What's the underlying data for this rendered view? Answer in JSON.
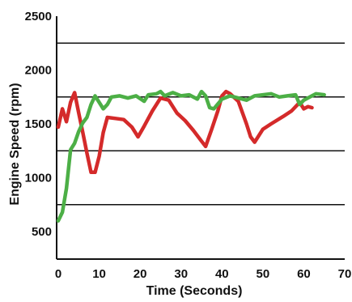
{
  "chart_data": {
    "type": "line",
    "title": "",
    "xlabel": "Time (Seconds)",
    "ylabel": "Engine Speed (rpm)",
    "xlim": [
      0,
      70
    ],
    "ylim": [
      300,
      2500
    ],
    "x_ticks": [
      0,
      10,
      20,
      30,
      40,
      50,
      60,
      70
    ],
    "y_ticks": [
      500,
      1000,
      1500,
      2000,
      2500
    ],
    "grid_y": [
      750,
      1250,
      1750,
      2250
    ],
    "grid": true,
    "legend": "none",
    "series": [
      {
        "color": "#d42a2a",
        "points": [
          [
            0,
            1470
          ],
          [
            1,
            1640
          ],
          [
            2,
            1520
          ],
          [
            3,
            1700
          ],
          [
            4,
            1790
          ],
          [
            5,
            1600
          ],
          [
            6,
            1420
          ],
          [
            7,
            1230
          ],
          [
            8,
            1050
          ],
          [
            9,
            1050
          ],
          [
            10,
            1200
          ],
          [
            11,
            1420
          ],
          [
            12,
            1560
          ],
          [
            14,
            1550
          ],
          [
            16,
            1540
          ],
          [
            18,
            1470
          ],
          [
            19.5,
            1380
          ],
          [
            21,
            1480
          ],
          [
            23,
            1620
          ],
          [
            25,
            1740
          ],
          [
            27,
            1720
          ],
          [
            29,
            1600
          ],
          [
            31,
            1530
          ],
          [
            33,
            1440
          ],
          [
            35,
            1340
          ],
          [
            36,
            1290
          ],
          [
            37.5,
            1450
          ],
          [
            39,
            1620
          ],
          [
            40,
            1760
          ],
          [
            41,
            1800
          ],
          [
            42,
            1780
          ],
          [
            44,
            1710
          ],
          [
            46,
            1500
          ],
          [
            47,
            1380
          ],
          [
            48,
            1330
          ],
          [
            50,
            1450
          ],
          [
            52,
            1500
          ],
          [
            55,
            1570
          ],
          [
            57,
            1620
          ],
          [
            59,
            1700
          ],
          [
            60,
            1640
          ],
          [
            61,
            1660
          ],
          [
            62,
            1650
          ]
        ]
      },
      {
        "color": "#4caf46",
        "points": [
          [
            0,
            600
          ],
          [
            1,
            680
          ],
          [
            2,
            900
          ],
          [
            3,
            1260
          ],
          [
            4,
            1320
          ],
          [
            5,
            1430
          ],
          [
            6,
            1510
          ],
          [
            7,
            1560
          ],
          [
            8,
            1680
          ],
          [
            9,
            1760
          ],
          [
            10,
            1700
          ],
          [
            11,
            1640
          ],
          [
            12,
            1680
          ],
          [
            13,
            1750
          ],
          [
            15,
            1760
          ],
          [
            17,
            1740
          ],
          [
            19,
            1760
          ],
          [
            21,
            1710
          ],
          [
            22,
            1770
          ],
          [
            24,
            1780
          ],
          [
            25,
            1800
          ],
          [
            26,
            1760
          ],
          [
            28,
            1790
          ],
          [
            30,
            1760
          ],
          [
            32,
            1770
          ],
          [
            34,
            1730
          ],
          [
            35,
            1800
          ],
          [
            36,
            1760
          ],
          [
            37,
            1650
          ],
          [
            38,
            1640
          ],
          [
            40,
            1730
          ],
          [
            42,
            1760
          ],
          [
            44,
            1740
          ],
          [
            46,
            1720
          ],
          [
            48,
            1760
          ],
          [
            50,
            1770
          ],
          [
            52,
            1780
          ],
          [
            54,
            1750
          ],
          [
            56,
            1760
          ],
          [
            58,
            1770
          ],
          [
            59,
            1680
          ],
          [
            60,
            1720
          ],
          [
            62,
            1760
          ],
          [
            63,
            1780
          ],
          [
            65,
            1770
          ]
        ]
      }
    ]
  }
}
